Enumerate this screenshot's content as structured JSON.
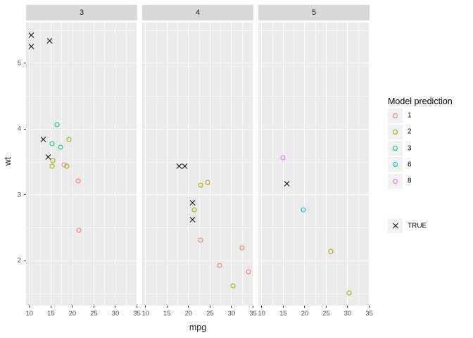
{
  "chart_data": {
    "type": "scatter",
    "xlabel": "mpg",
    "ylabel": "wt",
    "facet_labels": [
      "3",
      "4",
      "5"
    ],
    "x_ticks": [
      10,
      15,
      20,
      25,
      30,
      35
    ],
    "y_ticks": [
      2,
      3,
      4,
      5
    ],
    "x_minor": [
      12.5,
      17.5,
      22.5,
      27.5,
      32.5
    ],
    "y_minor": [
      1.5,
      2.5,
      3.5,
      4.5,
      5.5
    ],
    "x_domain": [
      9.22,
      35.08
    ],
    "y_domain": [
      1.32,
      5.62
    ],
    "grid": "on",
    "legend_position": "right",
    "colors": {
      "1": "#F8766D",
      "2": "#A3A500",
      "3": "#00BF7D",
      "6": "#00B0F6",
      "8": "#E76BF3",
      "TRUE": "#000000"
    },
    "legend": {
      "title": "Model prediction",
      "entries": [
        {
          "label": "1",
          "shape": "circle",
          "color": "#F8766D"
        },
        {
          "label": "2",
          "shape": "circle",
          "color": "#A3A500"
        },
        {
          "label": "3",
          "shape": "circle",
          "color": "#00BF7D"
        },
        {
          "label": "6",
          "shape": "circle",
          "color": "#00B0F6"
        },
        {
          "label": "8",
          "shape": "circle",
          "color": "#E76BF3"
        }
      ],
      "shape_entries": [
        {
          "label": "TRUE",
          "shape": "x",
          "color": "#000000"
        }
      ]
    },
    "panels": [
      {
        "facet": "3",
        "points": [
          {
            "mpg": 10.4,
            "wt": 5.424,
            "class": "TRUE"
          },
          {
            "mpg": 14.7,
            "wt": 5.345,
            "class": "TRUE"
          },
          {
            "mpg": 10.4,
            "wt": 5.25,
            "class": "TRUE"
          },
          {
            "mpg": 16.4,
            "wt": 4.07,
            "class": "3"
          },
          {
            "mpg": 19.2,
            "wt": 3.845,
            "class": "2"
          },
          {
            "mpg": 13.3,
            "wt": 3.84,
            "class": "TRUE"
          },
          {
            "mpg": 15.2,
            "wt": 3.78,
            "class": "3"
          },
          {
            "mpg": 17.3,
            "wt": 3.73,
            "class": "3"
          },
          {
            "mpg": 14.3,
            "wt": 3.57,
            "class": "TRUE"
          },
          {
            "mpg": 15.5,
            "wt": 3.52,
            "class": "2"
          },
          {
            "mpg": 18.1,
            "wt": 3.46,
            "class": "1"
          },
          {
            "mpg": 18.7,
            "wt": 3.44,
            "class": "2"
          },
          {
            "mpg": 15.2,
            "wt": 3.435,
            "class": "2"
          },
          {
            "mpg": 21.4,
            "wt": 3.215,
            "class": "1"
          },
          {
            "mpg": 21.5,
            "wt": 2.465,
            "class": "1"
          }
        ]
      },
      {
        "facet": "4",
        "points": [
          {
            "mpg": 17.8,
            "wt": 3.44,
            "class": "TRUE"
          },
          {
            "mpg": 19.2,
            "wt": 3.44,
            "class": "TRUE"
          },
          {
            "mpg": 24.4,
            "wt": 3.19,
            "class": "2"
          },
          {
            "mpg": 22.8,
            "wt": 3.15,
            "class": "2"
          },
          {
            "mpg": 21.0,
            "wt": 2.875,
            "class": "TRUE"
          },
          {
            "mpg": 21.4,
            "wt": 2.78,
            "class": "2"
          },
          {
            "mpg": 21.0,
            "wt": 2.62,
            "class": "TRUE"
          },
          {
            "mpg": 22.8,
            "wt": 2.32,
            "class": "1"
          },
          {
            "mpg": 32.4,
            "wt": 2.2,
            "class": "1"
          },
          {
            "mpg": 27.3,
            "wt": 1.935,
            "class": "1"
          },
          {
            "mpg": 33.9,
            "wt": 1.835,
            "class": "1"
          },
          {
            "mpg": 30.4,
            "wt": 1.615,
            "class": "2"
          }
        ]
      },
      {
        "facet": "5",
        "points": [
          {
            "mpg": 15.0,
            "wt": 3.57,
            "class": "8"
          },
          {
            "mpg": 15.8,
            "wt": 3.17,
            "class": "TRUE"
          },
          {
            "mpg": 19.7,
            "wt": 2.77,
            "class": "6"
          },
          {
            "mpg": 26.0,
            "wt": 2.14,
            "class": "2"
          },
          {
            "mpg": 30.4,
            "wt": 1.513,
            "class": "2"
          }
        ]
      }
    ]
  },
  "theme": {
    "panel_bg": "#EBEBEB",
    "strip_bg": "#D9D9D9",
    "grid_color": "#FFFFFF",
    "tick_label_color": "#4D4D4D",
    "legend_key_bg": "#F2F2F2"
  }
}
